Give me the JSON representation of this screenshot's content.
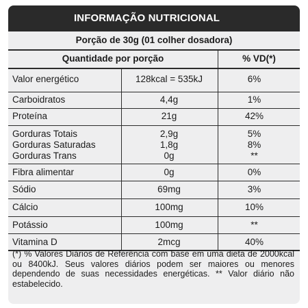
{
  "title": "INFORMAÇÃO NUTRICIONAL",
  "portion": "Porção de 30g (01 colher dosadora)",
  "columns": {
    "quantity": "Quantidade por porção",
    "vd": "% VD(*)"
  },
  "rows": [
    {
      "name": "Valor energético",
      "amount": "128kcal = 535kJ",
      "vd": "6%"
    },
    {
      "name": "Carboidratos",
      "amount": "4,4g",
      "vd": "1%"
    },
    {
      "name": "Proteína",
      "amount": "21g",
      "vd": "42%"
    },
    {
      "name": "Gorduras Totais",
      "amount": "2,9g",
      "vd": "5%"
    },
    {
      "name": "Gorduras Saturadas",
      "amount": "1,8g",
      "vd": "8%"
    },
    {
      "name": "Gorduras Trans",
      "amount": "0g",
      "vd": "**"
    },
    {
      "name": "Fibra alimentar",
      "amount": "0g",
      "vd": "0%"
    },
    {
      "name": "Sódio",
      "amount": "69mg",
      "vd": "3%"
    },
    {
      "name": "Cálcio",
      "amount": "100mg",
      "vd": "10%"
    },
    {
      "name": "Potássio",
      "amount": "100mg",
      "vd": "**"
    },
    {
      "name": "Vitamina D",
      "amount": "2mcg",
      "vd": "40%"
    }
  ],
  "footnote": "(*) % Valores Diários de Referência com base em uma dieta de 2000kcal ou 8400kJ. Seus valores diários podem ser maiores ou menores dependendo de suas necessidades energéticas. ** Valor diário não estabelecido."
}
